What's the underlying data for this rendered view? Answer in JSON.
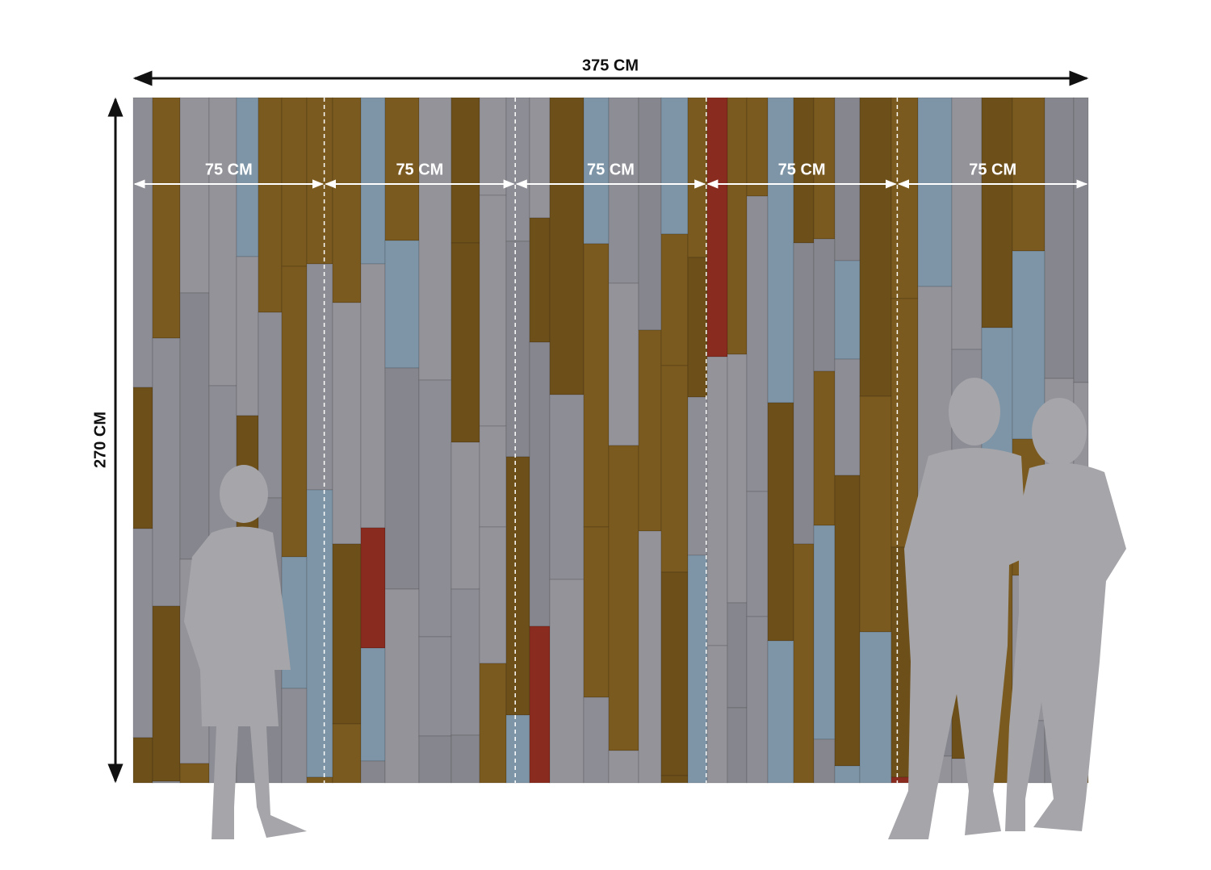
{
  "width_label": "375 CM",
  "height_label": "270 CM",
  "panels": [
    {
      "label": "75 CM"
    },
    {
      "label": "75 CM"
    },
    {
      "label": "75 CM"
    },
    {
      "label": "75 CM"
    },
    {
      "label": "75 CM"
    }
  ]
}
